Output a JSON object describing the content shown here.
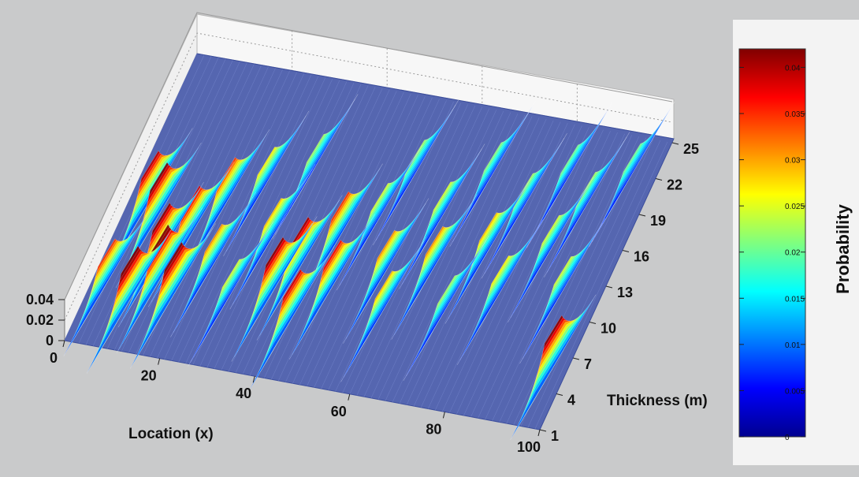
{
  "chart_data": {
    "type": "surface3d",
    "title": "",
    "xlabel": "Location (x)",
    "ylabel": "Thickness (m)",
    "zlabel": "",
    "colorbar_label": "Probability",
    "xlim": [
      0,
      100
    ],
    "ylim": [
      1,
      25
    ],
    "zlim": [
      0,
      0.04
    ],
    "clim": [
      0,
      0.042
    ],
    "x_ticks": [
      "0",
      "20",
      "40",
      "60",
      "80",
      "100"
    ],
    "y_ticks": [
      "1",
      "4",
      "7",
      "10",
      "13",
      "16",
      "19",
      "22",
      "25"
    ],
    "z_ticks": [
      "0",
      "0.02",
      "0.04"
    ],
    "colorbar_ticks": [
      "0",
      "0.005",
      "0.01",
      "0.015",
      "0.02",
      "0.025",
      "0.03",
      "0.035",
      "0.04"
    ],
    "colormap": "jet",
    "grid": true,
    "colors": {
      "background": "#c9cacb",
      "baseline_surface": "#5566b0",
      "colormap_low": "#00008f",
      "colormap_high": "#800000"
    },
    "peaks": [
      {
        "x": 3,
        "y": 6,
        "z": 0.03
      },
      {
        "x": 4,
        "y": 13,
        "z": 0.035
      },
      {
        "x": 7,
        "y": 12,
        "z": 0.038
      },
      {
        "x": 9,
        "y": 5,
        "z": 0.04
      },
      {
        "x": 11,
        "y": 9,
        "z": 0.037
      },
      {
        "x": 13,
        "y": 7,
        "z": 0.041
      },
      {
        "x": 15,
        "y": 11,
        "z": 0.034
      },
      {
        "x": 17,
        "y": 6,
        "z": 0.039
      },
      {
        "x": 19,
        "y": 14,
        "z": 0.03
      },
      {
        "x": 22,
        "y": 9,
        "z": 0.026
      },
      {
        "x": 25,
        "y": 16,
        "z": 0.022
      },
      {
        "x": 28,
        "y": 7,
        "z": 0.02
      },
      {
        "x": 31,
        "y": 12,
        "z": 0.024
      },
      {
        "x": 33,
        "y": 18,
        "z": 0.018
      },
      {
        "x": 36,
        "y": 8,
        "z": 0.037
      },
      {
        "x": 39,
        "y": 10,
        "z": 0.036
      },
      {
        "x": 42,
        "y": 6,
        "z": 0.034
      },
      {
        "x": 44,
        "y": 13,
        "z": 0.03
      },
      {
        "x": 47,
        "y": 9,
        "z": 0.032
      },
      {
        "x": 50,
        "y": 15,
        "z": 0.02
      },
      {
        "x": 53,
        "y": 19,
        "z": 0.018
      },
      {
        "x": 56,
        "y": 11,
        "z": 0.026
      },
      {
        "x": 59,
        "y": 8,
        "z": 0.024
      },
      {
        "x": 62,
        "y": 16,
        "z": 0.02
      },
      {
        "x": 65,
        "y": 12,
        "z": 0.026
      },
      {
        "x": 68,
        "y": 20,
        "z": 0.017
      },
      {
        "x": 71,
        "y": 9,
        "z": 0.018
      },
      {
        "x": 74,
        "y": 14,
        "z": 0.024
      },
      {
        "x": 77,
        "y": 18,
        "z": 0.018
      },
      {
        "x": 80,
        "y": 11,
        "z": 0.022
      },
      {
        "x": 83,
        "y": 21,
        "z": 0.016
      },
      {
        "x": 86,
        "y": 15,
        "z": 0.02
      },
      {
        "x": 89,
        "y": 19,
        "z": 0.018
      },
      {
        "x": 92,
        "y": 12,
        "z": 0.02
      },
      {
        "x": 95,
        "y": 22,
        "z": 0.016
      },
      {
        "x": 97,
        "y": 6,
        "z": 0.037
      }
    ]
  }
}
